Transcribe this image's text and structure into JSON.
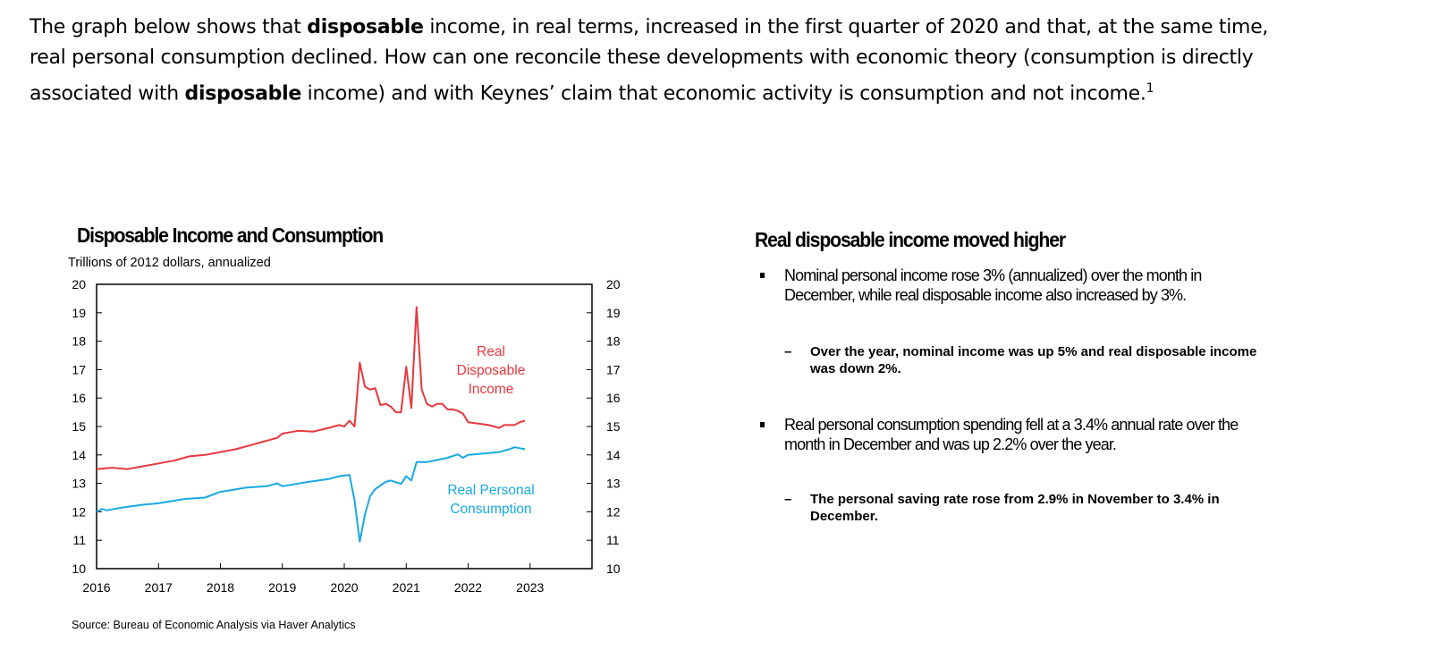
{
  "question": {
    "parts": [
      "The graph below shows that ",
      "disposable",
      " income, in real terms, increased in the first quarter of 2020 and that, at the same time, real personal consumption declined.  How can one reconcile these developments with economic theory (consumption is directly associated with ",
      "disposable",
      " income) and with Keynes’ claim that economic activity is consumption and not income.",
      "1"
    ]
  },
  "chart_data": {
    "type": "line",
    "title": "Disposable Income and Consumption",
    "subtitle": "Trillions of 2012 dollars, annualized",
    "source": "Source: Bureau of Economic Analysis via Haver Analytics",
    "xlabel": "",
    "ylabel": "",
    "xlim": [
      "2016-01",
      "2024-01"
    ],
    "ylim": [
      10,
      20
    ],
    "x_ticks": [
      "2016",
      "2017",
      "2018",
      "2019",
      "2020",
      "2021",
      "2022",
      "2023"
    ],
    "y_ticks": [
      10,
      11,
      12,
      13,
      14,
      15,
      16,
      17,
      18,
      19,
      20
    ],
    "y_ticks_right": [
      10,
      11,
      12,
      13,
      14,
      15,
      16,
      17,
      18,
      19,
      20
    ],
    "grid": false,
    "series": [
      {
        "name": "Real Disposable Income",
        "color": "#e8383d",
        "points": [
          [
            "2016-01",
            13.5
          ],
          [
            "2016-04",
            13.55
          ],
          [
            "2016-07",
            13.5
          ],
          [
            "2016-10",
            13.6
          ],
          [
            "2017-01",
            13.7
          ],
          [
            "2017-04",
            13.8
          ],
          [
            "2017-07",
            13.95
          ],
          [
            "2017-10",
            14.0
          ],
          [
            "2018-01",
            14.1
          ],
          [
            "2018-04",
            14.2
          ],
          [
            "2018-07",
            14.35
          ],
          [
            "2018-10",
            14.5
          ],
          [
            "2018-12",
            14.6
          ],
          [
            "2019-01",
            14.75
          ],
          [
            "2019-04",
            14.85
          ],
          [
            "2019-07",
            14.82
          ],
          [
            "2019-10",
            14.95
          ],
          [
            "2019-12",
            15.05
          ],
          [
            "2020-01",
            15.0
          ],
          [
            "2020-02",
            15.2
          ],
          [
            "2020-03",
            15.0
          ],
          [
            "2020-04",
            17.25
          ],
          [
            "2020-05",
            16.4
          ],
          [
            "2020-06",
            16.3
          ],
          [
            "2020-07",
            16.35
          ],
          [
            "2020-08",
            15.75
          ],
          [
            "2020-09",
            15.8
          ],
          [
            "2020-10",
            15.7
          ],
          [
            "2020-11",
            15.5
          ],
          [
            "2020-12",
            15.5
          ],
          [
            "2021-01",
            17.1
          ],
          [
            "2021-02",
            15.65
          ],
          [
            "2021-03",
            19.2
          ],
          [
            "2021-04",
            16.3
          ],
          [
            "2021-05",
            15.8
          ],
          [
            "2021-06",
            15.7
          ],
          [
            "2021-07",
            15.8
          ],
          [
            "2021-08",
            15.8
          ],
          [
            "2021-09",
            15.6
          ],
          [
            "2021-10",
            15.6
          ],
          [
            "2021-11",
            15.55
          ],
          [
            "2021-12",
            15.45
          ],
          [
            "2022-01",
            15.15
          ],
          [
            "2022-03",
            15.1
          ],
          [
            "2022-05",
            15.05
          ],
          [
            "2022-07",
            14.95
          ],
          [
            "2022-08",
            15.05
          ],
          [
            "2022-10",
            15.05
          ],
          [
            "2022-11",
            15.15
          ],
          [
            "2022-12",
            15.2
          ]
        ]
      },
      {
        "name": "Real Personal Consumption",
        "color": "#18a9e1",
        "points": [
          [
            "2016-01",
            12.0
          ],
          [
            "2016-02",
            12.1
          ],
          [
            "2016-03",
            12.05
          ],
          [
            "2016-06",
            12.15
          ],
          [
            "2016-10",
            12.25
          ],
          [
            "2017-01",
            12.3
          ],
          [
            "2017-06",
            12.45
          ],
          [
            "2017-10",
            12.5
          ],
          [
            "2018-01",
            12.7
          ],
          [
            "2018-06",
            12.85
          ],
          [
            "2018-10",
            12.9
          ],
          [
            "2018-12",
            13.0
          ],
          [
            "2019-01",
            12.9
          ],
          [
            "2019-06",
            13.05
          ],
          [
            "2019-10",
            13.15
          ],
          [
            "2019-12",
            13.25
          ],
          [
            "2020-02",
            13.3
          ],
          [
            "2020-03",
            12.4
          ],
          [
            "2020-04",
            10.95
          ],
          [
            "2020-05",
            11.9
          ],
          [
            "2020-06",
            12.55
          ],
          [
            "2020-07",
            12.8
          ],
          [
            "2020-09",
            13.05
          ],
          [
            "2020-10",
            13.1
          ],
          [
            "2020-12",
            12.98
          ],
          [
            "2021-01",
            13.25
          ],
          [
            "2021-02",
            13.1
          ],
          [
            "2021-03",
            13.75
          ],
          [
            "2021-05",
            13.75
          ],
          [
            "2021-07",
            13.82
          ],
          [
            "2021-09",
            13.9
          ],
          [
            "2021-11",
            14.02
          ],
          [
            "2021-12",
            13.9
          ],
          [
            "2022-01",
            14.0
          ],
          [
            "2022-04",
            14.05
          ],
          [
            "2022-07",
            14.1
          ],
          [
            "2022-09",
            14.2
          ],
          [
            "2022-10",
            14.27
          ],
          [
            "2022-12",
            14.2
          ]
        ]
      }
    ],
    "annotations": [
      {
        "series": "Real Disposable Income",
        "lines": [
          "Real",
          "Disposable",
          "Income"
        ]
      },
      {
        "series": "Real Personal Consumption",
        "lines": [
          "Real Personal",
          "Consumption"
        ]
      }
    ]
  },
  "summary": {
    "title": "Real disposable income moved higher",
    "bullets": [
      {
        "text": "Nominal personal income rose 3% (annualized) over the month in December, while real disposable income also increased by 3%.",
        "sub": "Over the year, nominal income was up 5% and real disposable income was down 2%."
      },
      {
        "text": "Real personal consumption spending fell at a 3.4% annual rate over the month in December and was up 2.2% over the year.",
        "sub": "The personal saving rate rose from 2.9% in November to 3.4% in December."
      }
    ]
  }
}
